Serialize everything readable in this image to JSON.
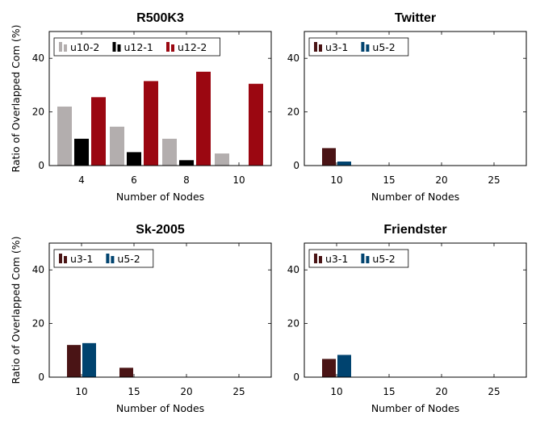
{
  "chart_data": [
    {
      "type": "bar",
      "title": "R500K3",
      "xlabel": "Number of Nodes",
      "ylabel": "Ratio of Overlapped Com (%)",
      "categories": [
        "4",
        "6",
        "8",
        "10"
      ],
      "ylim": [
        0,
        50
      ],
      "yticks": [
        0,
        20,
        40
      ],
      "legend": "top-left",
      "series": [
        {
          "name": "u10-2",
          "color": "#b3aeae",
          "values": [
            22,
            14.5,
            10,
            4.5
          ]
        },
        {
          "name": "u12-1",
          "color": "#000000",
          "values": [
            10,
            5,
            2,
            0
          ]
        },
        {
          "name": "u12-2",
          "color": "#9b0711",
          "values": [
            25.5,
            31.5,
            35,
            30.5
          ]
        }
      ]
    },
    {
      "type": "bar",
      "title": "Twitter",
      "xlabel": "Number of Nodes",
      "ylabel": "",
      "categories": [
        "10",
        "15",
        "20",
        "25"
      ],
      "ylim": [
        0,
        50
      ],
      "yticks": [
        0,
        20,
        40
      ],
      "legend": "top-left",
      "series": [
        {
          "name": "u3-1",
          "color": "#4a1415",
          "values": [
            6.5,
            0,
            0,
            0
          ]
        },
        {
          "name": "u5-2",
          "color": "#00436f",
          "values": [
            1.5,
            0,
            0,
            0
          ]
        }
      ]
    },
    {
      "type": "bar",
      "title": "Sk-2005",
      "xlabel": "Number of Nodes",
      "ylabel": "Ratio of Overlapped Com (%)",
      "categories": [
        "10",
        "15",
        "20",
        "25"
      ],
      "ylim": [
        0,
        50
      ],
      "yticks": [
        0,
        20,
        40
      ],
      "legend": "top-left",
      "series": [
        {
          "name": "u3-1",
          "color": "#4a1415",
          "values": [
            12,
            3.5,
            0,
            0
          ]
        },
        {
          "name": "u5-2",
          "color": "#00436f",
          "values": [
            12.7,
            0,
            0,
            0
          ]
        }
      ]
    },
    {
      "type": "bar",
      "title": "Friendster",
      "xlabel": "Number of Nodes",
      "ylabel": "",
      "categories": [
        "10",
        "15",
        "20",
        "25"
      ],
      "ylim": [
        0,
        50
      ],
      "yticks": [
        0,
        20,
        40
      ],
      "legend": "top-left",
      "series": [
        {
          "name": "u3-1",
          "color": "#4a1415",
          "values": [
            6.8,
            0,
            0,
            0
          ]
        },
        {
          "name": "u5-2",
          "color": "#00436f",
          "values": [
            8.3,
            0,
            0,
            0
          ]
        }
      ]
    }
  ]
}
